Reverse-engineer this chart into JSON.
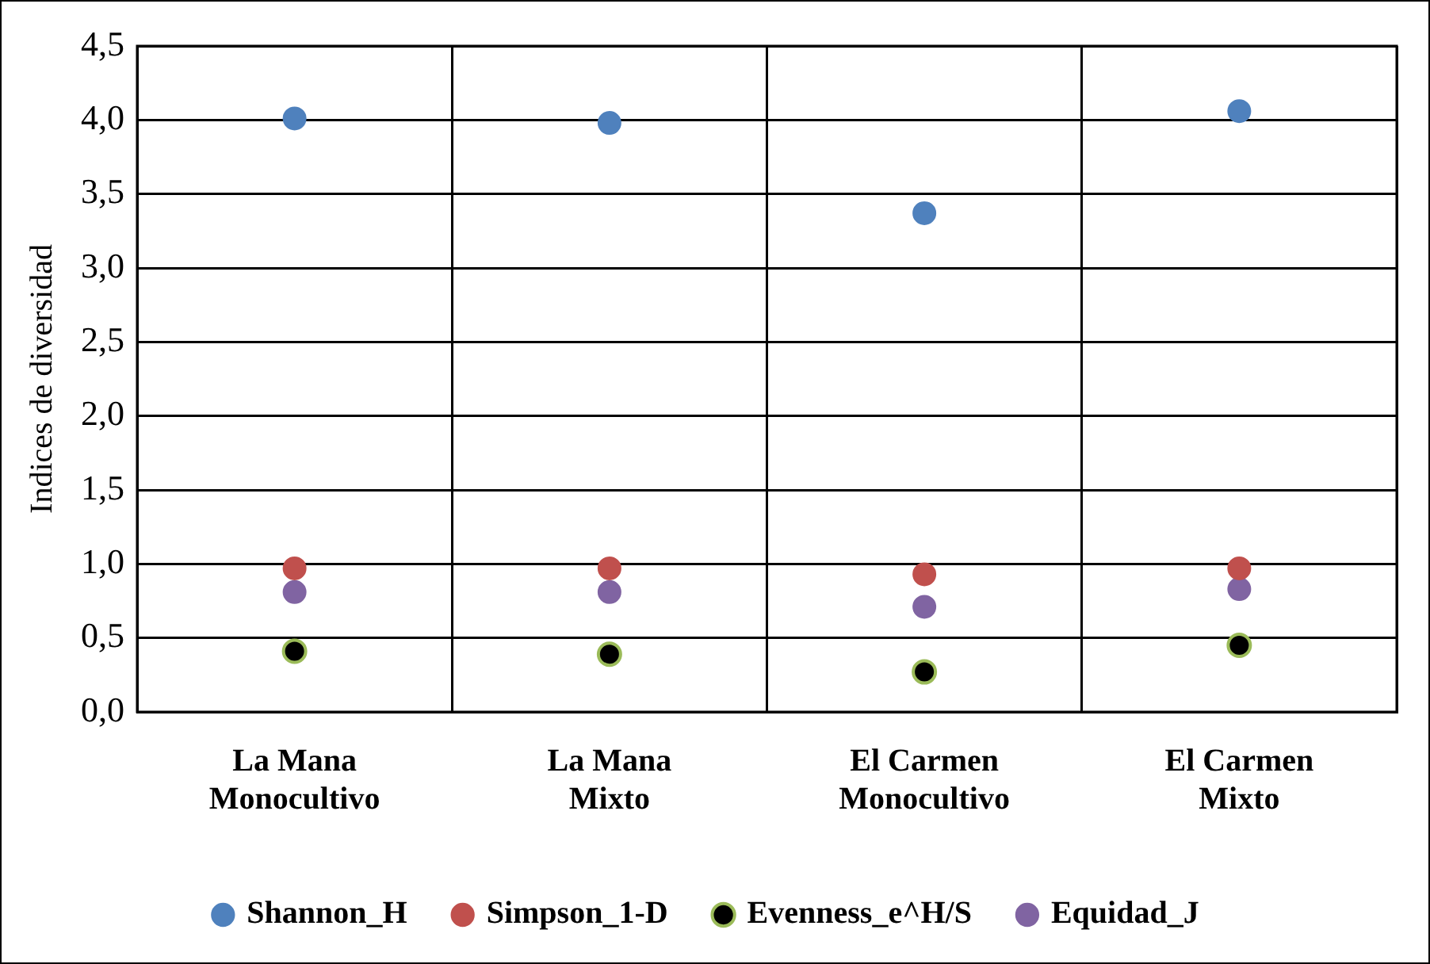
{
  "chart_data": {
    "type": "scatter",
    "ylabel": "Indices de diversidad",
    "categories": [
      "La Mana\nMonocultivo",
      "La Mana\nMixto",
      "El Carmen\nMonocultivo",
      "El Carmen\nMixto"
    ],
    "series": [
      {
        "name": "Shannon_H",
        "color": "#4f81bd",
        "values": [
          4.01,
          3.98,
          3.37,
          4.06
        ]
      },
      {
        "name": "Simpson_1-D",
        "color": "#c0504d",
        "values": [
          0.97,
          0.97,
          0.93,
          0.97
        ]
      },
      {
        "name": "Evenness_e^H/S",
        "color": "#000000",
        "values": [
          0.41,
          0.39,
          0.27,
          0.45
        ]
      },
      {
        "name": "Equidad_J",
        "color": "#8064a2",
        "values": [
          0.81,
          0.81,
          0.71,
          0.83
        ]
      }
    ],
    "ylim": [
      0,
      4.5
    ],
    "yticks": [
      {
        "value": 0,
        "label": "0,0"
      },
      {
        "value": 0.5,
        "label": "0,5"
      },
      {
        "value": 1,
        "label": "1,0"
      },
      {
        "value": 1.5,
        "label": "1,5"
      },
      {
        "value": 2,
        "label": "2,0"
      },
      {
        "value": 2.5,
        "label": "2,5"
      },
      {
        "value": 3,
        "label": "3,0"
      },
      {
        "value": 3.5,
        "label": "3,5"
      },
      {
        "value": 4,
        "label": "4,0"
      },
      {
        "value": 4.5,
        "label": "4,5"
      }
    ],
    "grid": true,
    "legend": "bottom",
    "marker": "circle"
  }
}
